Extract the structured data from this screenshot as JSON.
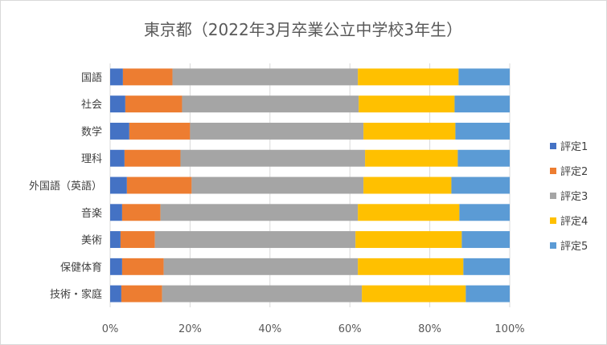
{
  "chart_data": {
    "type": "bar",
    "orientation": "horizontal",
    "stacked": "percent",
    "title": "東京都（2022年3月卒業公立中学校3年生）",
    "categories": [
      "国語",
      "社会",
      "数学",
      "理科",
      "外国語（英語）",
      "音楽",
      "美術",
      "保健体育",
      "技術・家庭"
    ],
    "series": [
      {
        "name": "評定1",
        "color": "#4472C4",
        "values": [
          3.2,
          3.8,
          4.8,
          3.6,
          4.2,
          3.0,
          2.6,
          3.0,
          2.8
        ]
      },
      {
        "name": "評定2",
        "color": "#ED7D31",
        "values": [
          12.4,
          14.2,
          15.2,
          14.0,
          16.2,
          9.6,
          8.6,
          10.4,
          10.2
        ]
      },
      {
        "name": "評定3",
        "color": "#A5A5A5",
        "values": [
          46.4,
          44.2,
          43.4,
          46.2,
          43.0,
          49.4,
          50.2,
          48.6,
          50.0
        ]
      },
      {
        "name": "評定4",
        "color": "#FFC000",
        "values": [
          25.2,
          24.0,
          23.0,
          23.2,
          22.0,
          25.4,
          26.6,
          26.4,
          26.0
        ]
      },
      {
        "name": "評定5",
        "color": "#5B9BD5",
        "values": [
          12.8,
          13.8,
          13.6,
          13.0,
          14.6,
          12.6,
          12.0,
          11.6,
          11.0
        ]
      }
    ],
    "xlim": [
      0,
      100
    ],
    "x_ticks": [
      "0%",
      "20%",
      "40%",
      "60%",
      "80%",
      "100%"
    ],
    "grid": "vertical",
    "legend_position": "right"
  }
}
